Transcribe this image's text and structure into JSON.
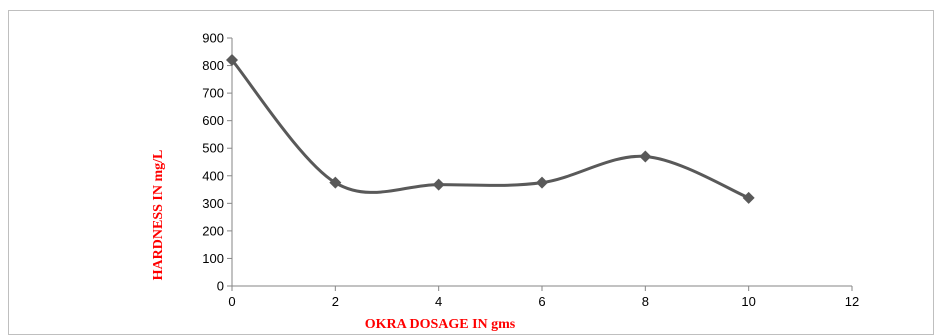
{
  "chart_data": {
    "type": "line",
    "title": "",
    "xlabel": "OKRA DOSAGE IN gms",
    "ylabel": "HARDNESS IN mg/L",
    "xlim": [
      0,
      12
    ],
    "ylim": [
      0,
      900
    ],
    "x_ticks": [
      0,
      2,
      4,
      6,
      8,
      10,
      12
    ],
    "y_ticks": [
      0,
      100,
      200,
      300,
      400,
      500,
      600,
      700,
      800,
      900
    ],
    "grid": false,
    "legend": "none",
    "smooth": true,
    "marker": "diamond",
    "series": [
      {
        "x": [
          0,
          2,
          4,
          6,
          8,
          10
        ],
        "values": [
          820,
          375,
          368,
          375,
          470,
          320
        ]
      }
    ],
    "colors": {
      "line": "#595959",
      "marker": "#595959",
      "axis_title": "#ff0000",
      "axis": "#868686"
    }
  }
}
